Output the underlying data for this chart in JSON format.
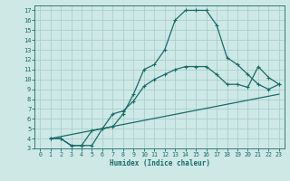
{
  "title": "",
  "xlabel": "Humidex (Indice chaleur)",
  "bg_color": "#cde8e5",
  "line_color": "#1a6b6b",
  "grid_color": "#aacfcc",
  "xlim": [
    -0.5,
    23.5
  ],
  "ylim": [
    3,
    17.5
  ],
  "xticks": [
    0,
    1,
    2,
    3,
    4,
    5,
    6,
    7,
    8,
    9,
    10,
    11,
    12,
    13,
    14,
    15,
    16,
    17,
    18,
    19,
    20,
    21,
    22,
    23
  ],
  "yticks": [
    3,
    4,
    5,
    6,
    7,
    8,
    9,
    10,
    11,
    12,
    13,
    14,
    15,
    16,
    17
  ],
  "curve1_x": [
    1,
    2,
    3,
    4,
    5,
    6,
    7,
    8,
    9,
    10,
    11,
    12,
    13,
    14,
    15,
    16,
    17,
    18,
    19,
    20,
    21,
    22,
    23
  ],
  "curve1_y": [
    4.0,
    4.0,
    3.3,
    3.3,
    3.3,
    5.0,
    5.2,
    6.5,
    8.5,
    11.0,
    11.5,
    13.0,
    16.0,
    17.0,
    17.0,
    17.0,
    15.5,
    12.2,
    11.5,
    10.5,
    9.5,
    9.0,
    9.5
  ],
  "curve2_x": [
    1,
    2,
    3,
    4,
    5,
    6,
    7,
    8,
    9,
    10,
    11,
    12,
    13,
    14,
    15,
    16,
    17,
    18,
    19,
    20,
    21,
    22,
    23
  ],
  "curve2_y": [
    4.0,
    4.0,
    3.3,
    3.3,
    4.8,
    5.0,
    6.5,
    6.8,
    7.8,
    9.3,
    10.0,
    10.5,
    11.0,
    11.3,
    11.3,
    11.3,
    10.5,
    9.5,
    9.5,
    9.2,
    11.3,
    10.2,
    9.5
  ],
  "curve3_x": [
    1,
    23
  ],
  "curve3_y": [
    4.0,
    8.5
  ]
}
